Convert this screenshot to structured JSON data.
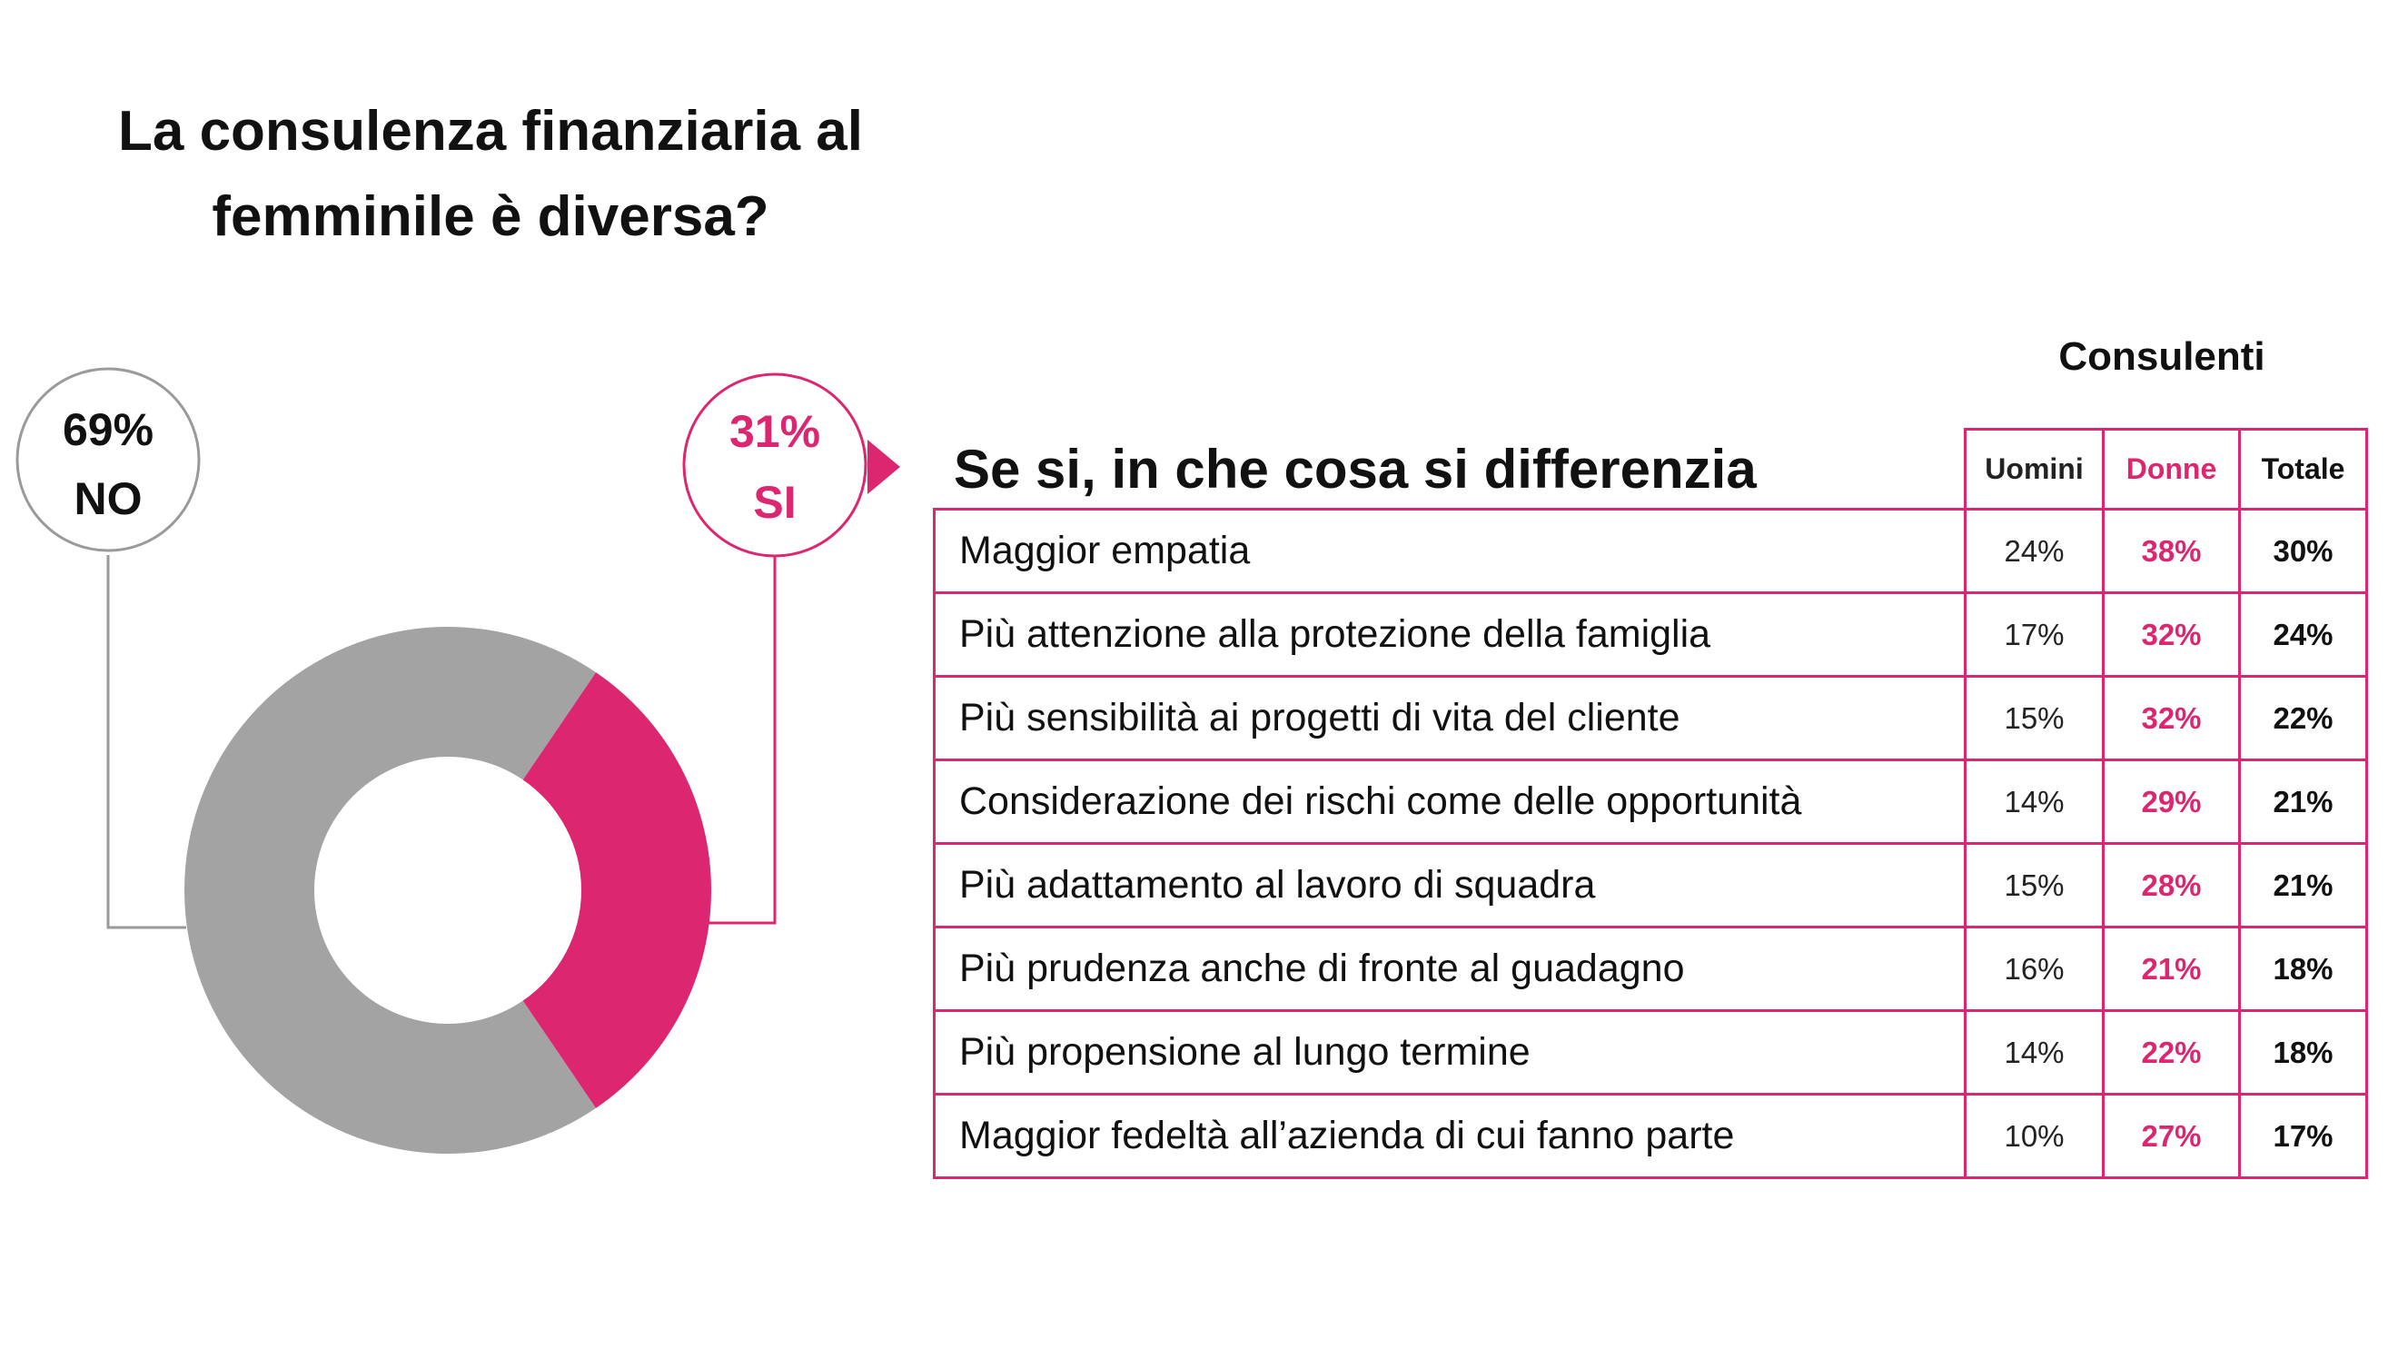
{
  "title": {
    "line1": "La consulenza finanziaria al",
    "line2": "femminile è diversa?"
  },
  "colors": {
    "no": "#a3a3a3",
    "si": "#dc2670",
    "accent": "#dc2670",
    "no_callout_border": "#9a9a9a"
  },
  "chart_data": [
    {
      "type": "pie",
      "slices": [
        {
          "label": "NO",
          "value": 69,
          "display": "69%"
        },
        {
          "label": "SI",
          "value": 31,
          "display": "31%"
        }
      ]
    },
    {
      "type": "table",
      "title": "Se si, in che cosa si differenzia",
      "group_header": "Consulenti",
      "columns": [
        "Uomini",
        "Donne",
        "Totale"
      ],
      "rows": [
        {
          "label": "Maggior empatia",
          "values": [
            "24%",
            "38%",
            "30%"
          ]
        },
        {
          "label": "Più attenzione alla protezione della famiglia",
          "values": [
            "17%",
            "32%",
            "24%"
          ]
        },
        {
          "label": "Più sensibilità ai progetti di vita del cliente",
          "values": [
            "15%",
            "32%",
            "22%"
          ]
        },
        {
          "label": "Considerazione dei rischi come delle opportunità",
          "values": [
            "14%",
            "29%",
            "21%"
          ]
        },
        {
          "label": "Più adattamento al lavoro di squadra",
          "values": [
            "15%",
            "28%",
            "21%"
          ]
        },
        {
          "label": "Più prudenza anche di fronte al guadagno",
          "values": [
            "16%",
            "21%",
            "18%"
          ]
        },
        {
          "label": "Più propensione al lungo termine",
          "values": [
            "14%",
            "22%",
            "18%"
          ]
        },
        {
          "label": "Maggior fedeltà all’azienda di cui fanno parte",
          "values": [
            "10%",
            "27%",
            "17%"
          ]
        }
      ]
    }
  ]
}
